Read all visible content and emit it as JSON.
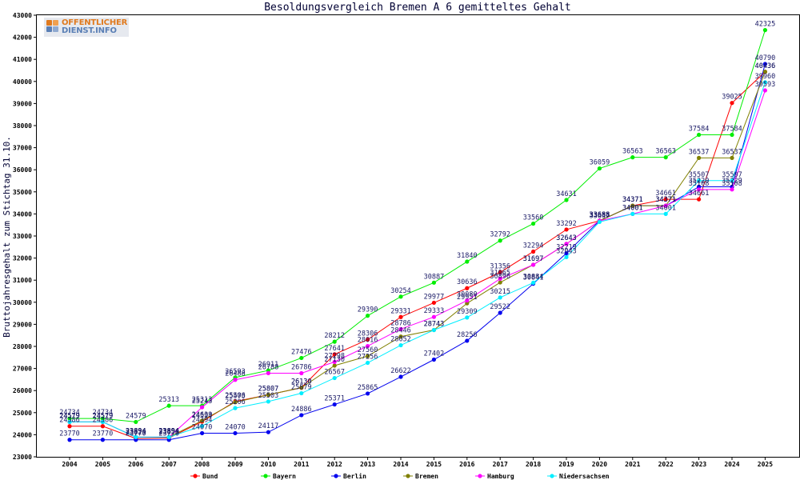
{
  "logo": {
    "line1": "OFFENTLICHER",
    "line2": "DIENST.INFO"
  },
  "chart_data": {
    "type": "line",
    "title": "Besoldungsvergleich Bremen A 6 gemitteltes Gehalt",
    "xlabel": "",
    "ylabel": "Bruttojahresgehalt zum Stichtag 31.10.",
    "ylim": [
      23000,
      43000
    ],
    "yticks": [
      23000,
      24000,
      25000,
      26000,
      27000,
      28000,
      29000,
      30000,
      31000,
      32000,
      33000,
      34000,
      35000,
      36000,
      37000,
      38000,
      39000,
      40000,
      41000,
      42000,
      43000
    ],
    "grid": false,
    "legend_position": "bottom",
    "categories": [
      "2004",
      "2005",
      "2006",
      "2007",
      "2008",
      "2009",
      "2010",
      "2011",
      "2012",
      "2013",
      "2014",
      "2015",
      "2016",
      "2017",
      "2018",
      "2019",
      "2020",
      "2021",
      "2022",
      "2023",
      "2024",
      "2025"
    ],
    "series": [
      {
        "name": "Bund",
        "color": "#ff0000",
        "values": [
          24386,
          24386,
          23829,
          23850,
          24594,
          25506,
          25807,
          26130,
          27641,
          28306,
          29331,
          29977,
          30636,
          31356,
          32294,
          33292,
          33688,
          34371,
          34661,
          34661,
          39025,
          40436
        ]
      },
      {
        "name": "Bayern",
        "color": "#00ee00",
        "values": [
          24734,
          24734,
          24579,
          25313,
          25313,
          26593,
          26911,
          27476,
          28212,
          29390,
          30254,
          30887,
          31840,
          32792,
          33560,
          34631,
          36059,
          36563,
          36563,
          37584,
          37584,
          42325
        ]
      },
      {
        "name": "Berlin",
        "color": "#0000ee",
        "values": [
          23770,
          23770,
          23770,
          23770,
          24070,
          24070,
          24117,
          24886,
          25371,
          25865,
          26622,
          27402,
          28256,
          29522,
          30841,
          32219,
          33688,
          34371,
          34371,
          35229,
          35229,
          40790
        ]
      },
      {
        "name": "Bremen",
        "color": "#808000",
        "values": [
          24579,
          24579,
          23894,
          23894,
          24639,
          25473,
          25807,
          26130,
          27130,
          27560,
          28446,
          28743,
          29951,
          30896,
          31697,
          32643,
          33688,
          34371,
          34371,
          36537,
          36537,
          40436
        ]
      },
      {
        "name": "Hamburg",
        "color": "#ff00ff",
        "values": [
          24579,
          24579,
          23894,
          23894,
          25243,
          26488,
          26788,
          26786,
          27298,
          28016,
          28786,
          29333,
          30080,
          31065,
          31697,
          32643,
          33688,
          34001,
          34371,
          35108,
          35108,
          39593
        ]
      },
      {
        "name": "Niedersachsen",
        "color": "#00eeff",
        "values": [
          24579,
          24579,
          23894,
          23894,
          24394,
          25206,
          25503,
          25879,
          26567,
          27256,
          28052,
          28743,
          29309,
          30215,
          30884,
          32043,
          33637,
          34001,
          34001,
          35507,
          35507,
          39960
        ]
      }
    ]
  }
}
